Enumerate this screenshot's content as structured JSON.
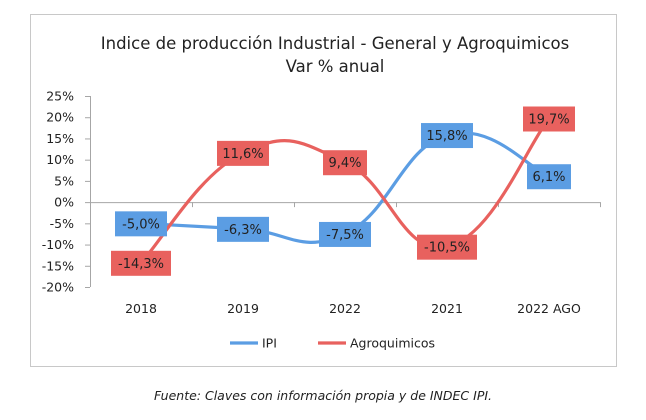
{
  "chart_data": {
    "type": "line",
    "title": "Indice de producción Industrial - General y Agroquimicos",
    "subtitle": "Var % anual",
    "categories": [
      "2018",
      "2019",
      "2022",
      "2021",
      "2022 AGO"
    ],
    "ylim": [
      -20,
      25
    ],
    "yticks": [
      -20,
      -15,
      -10,
      -5,
      0,
      5,
      10,
      15,
      20,
      25
    ],
    "ytick_labels": [
      "-20%",
      "-15%",
      "-10%",
      "-5%",
      "0%",
      "5%",
      "10%",
      "15%",
      "20%",
      "25%"
    ],
    "smooth": true,
    "grid": false,
    "legend": "bottom",
    "series": [
      {
        "name": "IPI",
        "color": "#5b9de3",
        "values": [
          -5.0,
          -6.3,
          -7.5,
          15.8,
          6.1
        ],
        "labels": [
          "-5,0%",
          "-6,3%",
          "-7,5%",
          "15,8%",
          "6,1%"
        ]
      },
      {
        "name": "Agroquimicos",
        "color": "#e8615e",
        "values": [
          -14.3,
          11.6,
          9.4,
          -10.5,
          19.7
        ],
        "labels": [
          "-14,3%",
          "11,6%",
          "9,4%",
          "-10,5%",
          "19,7%"
        ]
      }
    ]
  },
  "caption": "Fuente: Claves con información propia y de INDEC IPI."
}
